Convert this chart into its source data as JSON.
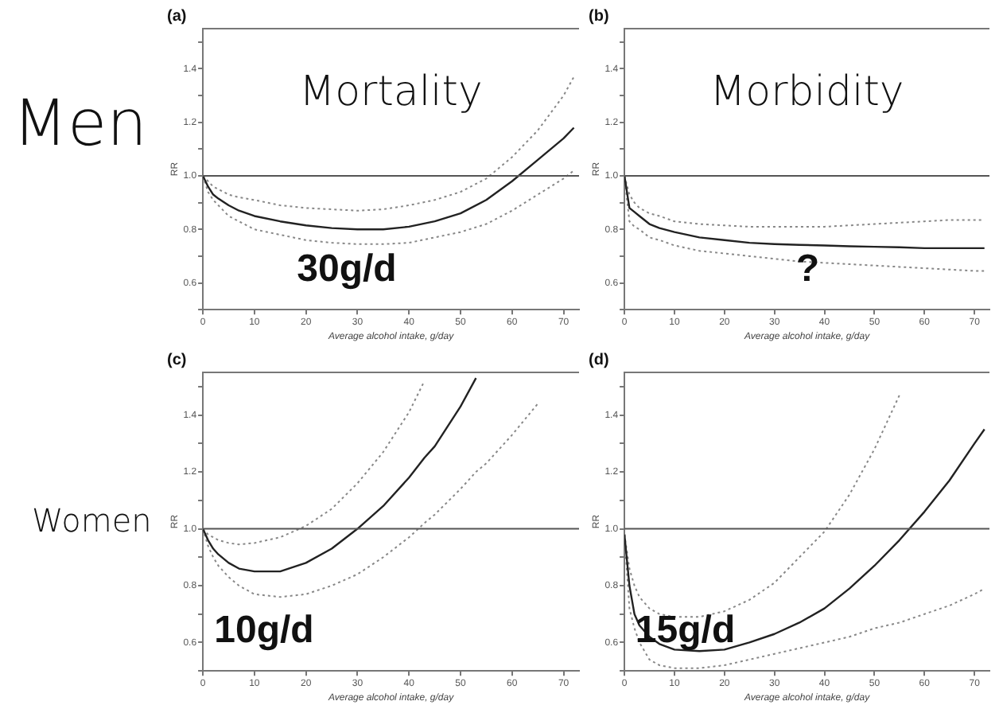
{
  "chart_data": [
    {
      "type": "line",
      "title": "(a)",
      "subtitle": "Men",
      "xlabel": "Average alcohol intake, g/day",
      "ylabel": "RR",
      "annotations": [
        "Mortality",
        "30g/d"
      ],
      "xlim": [
        0,
        73
      ],
      "xticks": [
        0,
        10,
        20,
        30,
        40,
        50,
        60,
        70
      ],
      "ylim": [
        0.5,
        1.55
      ],
      "yticks": [
        {
          "value": 0.5,
          "label": null
        },
        0.6,
        {
          "value": 0.7,
          "label": null
        },
        0.8,
        {
          "value": 0.9,
          "label": null
        },
        {
          "value": 1.0,
          "label": "1.0"
        },
        {
          "value": 1.1,
          "label": null
        },
        1.2,
        {
          "value": 1.3,
          "label": null
        },
        1.4,
        {
          "value": 1.5,
          "label": null
        }
      ],
      "grid": false,
      "legend": false,
      "line_style": "solid",
      "marker": "none",
      "ref_lines": [
        {
          "axis": "y",
          "value": 1.0,
          "color": "#555555"
        }
      ],
      "x": [
        0,
        1,
        2,
        3,
        5,
        7,
        10,
        15,
        20,
        25,
        30,
        35,
        40,
        45,
        50,
        55,
        60,
        65,
        70,
        72
      ],
      "series": [
        {
          "color": "#222222",
          "values": [
            1.0,
            0.96,
            0.93,
            0.915,
            0.89,
            0.87,
            0.85,
            0.83,
            0.815,
            0.805,
            0.8,
            0.8,
            0.81,
            0.83,
            0.86,
            0.91,
            0.98,
            1.06,
            1.14,
            1.18
          ]
        },
        {
          "color": "#888888",
          "line_style": "dotted",
          "values": [
            1.0,
            0.98,
            0.96,
            0.95,
            0.93,
            0.92,
            0.91,
            0.89,
            0.88,
            0.875,
            0.87,
            0.875,
            0.89,
            0.91,
            0.94,
            0.99,
            1.07,
            1.17,
            1.3,
            1.37
          ]
        },
        {
          "color": "#888888",
          "line_style": "dotted",
          "values": [
            1.0,
            0.94,
            0.91,
            0.89,
            0.85,
            0.83,
            0.8,
            0.78,
            0.76,
            0.75,
            0.745,
            0.745,
            0.75,
            0.77,
            0.79,
            0.82,
            0.87,
            0.93,
            0.99,
            1.02
          ]
        }
      ]
    },
    {
      "type": "line",
      "title": "(b)",
      "xlabel": "Average alcohol intake, g/day",
      "ylabel": "RR",
      "annotations": [
        "Morbidity",
        "?"
      ],
      "xlim": [
        0,
        73
      ],
      "xticks": [
        0,
        10,
        20,
        30,
        40,
        50,
        60,
        70
      ],
      "ylim": [
        0.5,
        1.55
      ],
      "yticks": [
        {
          "value": 0.5,
          "label": null
        },
        0.6,
        {
          "value": 0.7,
          "label": null
        },
        0.8,
        {
          "value": 0.9,
          "label": null
        },
        {
          "value": 1.0,
          "label": "1.0"
        },
        {
          "value": 1.1,
          "label": null
        },
        1.2,
        {
          "value": 1.3,
          "label": null
        },
        1.4,
        {
          "value": 1.5,
          "label": null
        }
      ],
      "grid": false,
      "legend": false,
      "line_style": "solid",
      "marker": "none",
      "ref_lines": [
        {
          "axis": "y",
          "value": 1.0,
          "color": "#555555"
        }
      ],
      "x": [
        0,
        1,
        2,
        3,
        5,
        7,
        10,
        15,
        20,
        25,
        30,
        35,
        40,
        45,
        50,
        55,
        60,
        65,
        70,
        72
      ],
      "series": [
        {
          "color": "#222222",
          "values": [
            1.0,
            0.88,
            0.865,
            0.85,
            0.82,
            0.805,
            0.79,
            0.77,
            0.76,
            0.75,
            0.745,
            0.742,
            0.74,
            0.737,
            0.735,
            0.733,
            0.73,
            0.73,
            0.73,
            0.73
          ]
        },
        {
          "color": "#888888",
          "line_style": "dotted",
          "values": [
            1.0,
            0.93,
            0.9,
            0.88,
            0.86,
            0.85,
            0.83,
            0.82,
            0.815,
            0.81,
            0.81,
            0.81,
            0.81,
            0.815,
            0.82,
            0.825,
            0.83,
            0.835,
            0.835,
            0.835
          ]
        },
        {
          "color": "#888888",
          "line_style": "dotted",
          "values": [
            1.0,
            0.83,
            0.81,
            0.8,
            0.77,
            0.76,
            0.74,
            0.72,
            0.71,
            0.7,
            0.69,
            0.68,
            0.675,
            0.67,
            0.665,
            0.66,
            0.655,
            0.65,
            0.645,
            0.645
          ]
        }
      ]
    },
    {
      "type": "line",
      "title": "(c)",
      "subtitle": "Women",
      "xlabel": "Average alcohol intake, g/day",
      "ylabel": "RR",
      "annotations": [
        "10g/d"
      ],
      "xlim": [
        0,
        73
      ],
      "xticks": [
        0,
        10,
        20,
        30,
        40,
        50,
        60,
        70
      ],
      "ylim": [
        0.5,
        1.55
      ],
      "yticks": [
        {
          "value": 0.5,
          "label": null
        },
        0.6,
        {
          "value": 0.7,
          "label": null
        },
        0.8,
        {
          "value": 0.9,
          "label": null
        },
        {
          "value": 1.0,
          "label": "1.0"
        },
        {
          "value": 1.1,
          "label": null
        },
        1.2,
        {
          "value": 1.3,
          "label": null
        },
        1.4,
        {
          "value": 1.5,
          "label": null
        }
      ],
      "grid": false,
      "legend": false,
      "line_style": "solid",
      "marker": "none",
      "ref_lines": [
        {
          "axis": "y",
          "value": 1.0,
          "color": "#555555"
        }
      ],
      "x": [
        0,
        1,
        2,
        3,
        5,
        7,
        10,
        15,
        20,
        25,
        30,
        35,
        40,
        43,
        45,
        50,
        53,
        55,
        60,
        65
      ],
      "series": [
        {
          "color": "#222222",
          "values": [
            1.0,
            0.96,
            0.93,
            0.91,
            0.88,
            0.86,
            0.85,
            0.85,
            0.88,
            0.93,
            1.0,
            1.08,
            1.18,
            1.25,
            1.29,
            1.43,
            1.53,
            null,
            null,
            null
          ]
        },
        {
          "color": "#888888",
          "line_style": "dotted",
          "values": [
            1.0,
            0.98,
            0.97,
            0.96,
            0.95,
            0.945,
            0.95,
            0.97,
            1.01,
            1.07,
            1.16,
            1.27,
            1.41,
            1.52,
            null,
            null,
            null,
            null,
            null,
            null
          ]
        },
        {
          "color": "#888888",
          "line_style": "dotted",
          "values": [
            1.0,
            0.94,
            0.9,
            0.87,
            0.83,
            0.8,
            0.77,
            0.76,
            0.77,
            0.8,
            0.84,
            0.9,
            0.97,
            1.02,
            1.05,
            1.14,
            1.2,
            1.23,
            1.33,
            1.44
          ]
        }
      ]
    },
    {
      "type": "line",
      "title": "(d)",
      "xlabel": "Average alcohol intake, g/day",
      "ylabel": "RR",
      "annotations": [
        "15g/d"
      ],
      "xlim": [
        0,
        73
      ],
      "xticks": [
        0,
        10,
        20,
        30,
        40,
        50,
        60,
        70
      ],
      "ylim": [
        0.5,
        1.55
      ],
      "yticks": [
        {
          "value": 0.5,
          "label": null
        },
        0.6,
        {
          "value": 0.7,
          "label": null
        },
        0.8,
        {
          "value": 0.9,
          "label": null
        },
        {
          "value": 1.0,
          "label": "1.0"
        },
        {
          "value": 1.1,
          "label": null
        },
        1.2,
        {
          "value": 1.3,
          "label": null
        },
        1.4,
        {
          "value": 1.5,
          "label": null
        }
      ],
      "grid": false,
      "legend": false,
      "line_style": "solid",
      "marker": "none",
      "ref_lines": [
        {
          "axis": "y",
          "value": 1.0,
          "color": "#555555"
        }
      ],
      "x": [
        0,
        1,
        2,
        3,
        5,
        7,
        10,
        15,
        20,
        25,
        30,
        35,
        40,
        45,
        50,
        55,
        60,
        65,
        70,
        72
      ],
      "series": [
        {
          "color": "#222222",
          "values": [
            0.98,
            0.8,
            0.7,
            0.66,
            0.62,
            0.595,
            0.575,
            0.57,
            0.575,
            0.6,
            0.63,
            0.67,
            0.72,
            0.79,
            0.87,
            0.96,
            1.06,
            1.17,
            1.3,
            1.35
          ]
        },
        {
          "color": "#888888",
          "line_style": "dotted",
          "values": [
            0.98,
            0.86,
            0.8,
            0.76,
            0.72,
            0.7,
            0.69,
            0.69,
            0.71,
            0.75,
            0.81,
            0.9,
            0.99,
            1.12,
            1.28,
            1.47,
            null,
            null,
            null,
            null
          ]
        },
        {
          "color": "#888888",
          "line_style": "dotted",
          "values": [
            0.98,
            0.72,
            0.65,
            0.6,
            0.54,
            0.52,
            0.51,
            0.51,
            0.52,
            0.54,
            0.56,
            0.58,
            0.6,
            0.62,
            0.65,
            0.67,
            0.7,
            0.73,
            0.77,
            0.79
          ]
        }
      ]
    }
  ]
}
